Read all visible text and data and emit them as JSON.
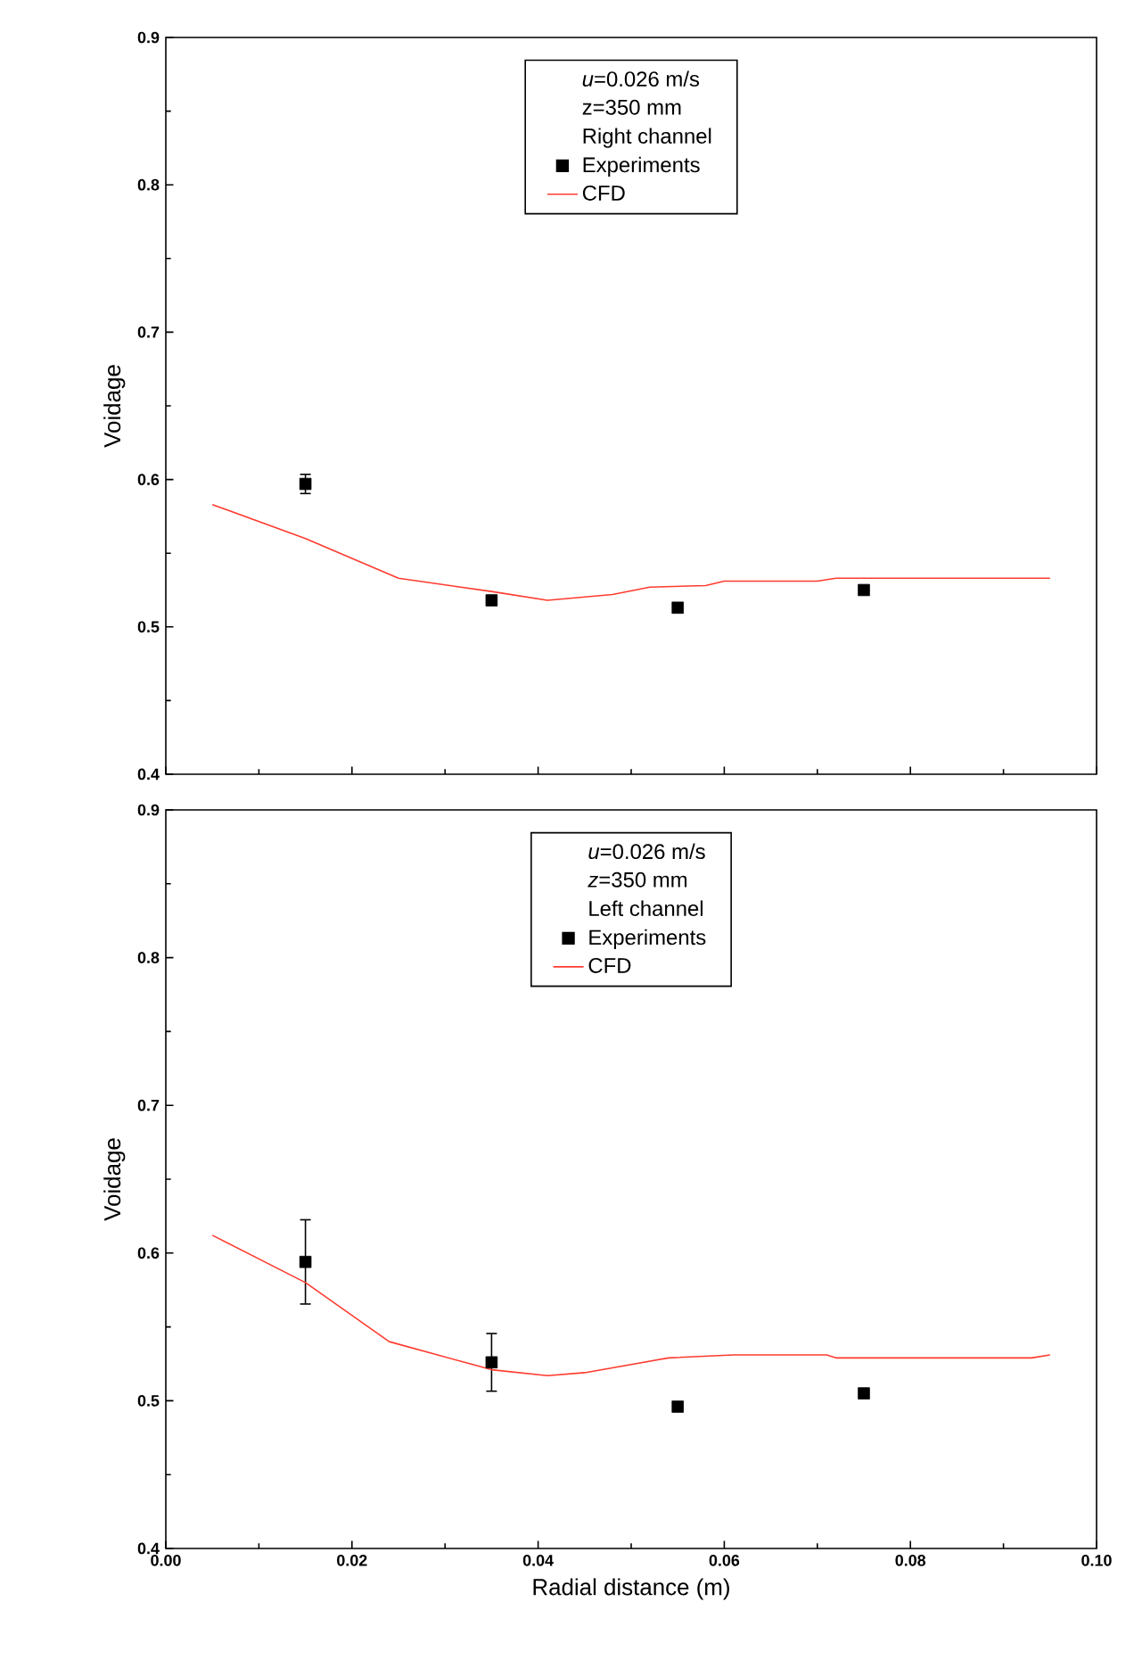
{
  "chart_data": [
    {
      "type": "scatter",
      "ylabel": "Voidage",
      "annotations": [
        "*u*=0.026 m/s",
        "z=350 mm",
        "Right channel"
      ],
      "xlim": [
        0,
        0.1
      ],
      "xticks": [
        0,
        0.02,
        0.04,
        0.06,
        0.08,
        0.1
      ],
      "ylim": [
        0.4,
        0.9
      ],
      "yticks": [
        0.4,
        0.5,
        0.6,
        0.7,
        0.8,
        0.9
      ],
      "tick_labels": "y",
      "legend": "top",
      "series": [
        {
          "name": "Experiments",
          "marker": "square",
          "color": "#000000",
          "x": [
            0.015,
            0.035,
            0.055,
            0.075
          ],
          "values": [
            0.597,
            0.518,
            0.513,
            0.525
          ],
          "errors": [
            0.007,
            null,
            null,
            null
          ]
        },
        {
          "name": "CFD",
          "type": "line",
          "color": "#ff3b2f",
          "x": [
            0.005,
            0.015,
            0.025,
            0.035,
            0.041,
            0.048,
            0.052,
            0.058,
            0.06,
            0.07,
            0.072,
            0.095
          ],
          "values": [
            0.583,
            0.56,
            0.533,
            0.524,
            0.518,
            0.522,
            0.527,
            0.528,
            0.531,
            0.531,
            0.533,
            0.533
          ]
        }
      ]
    },
    {
      "type": "scatter",
      "xlabel": "Radial distance (m)",
      "ylabel": "Voidage",
      "annotations": [
        "*u*=0.026 m/s",
        "*z*=350 mm",
        "Left channel"
      ],
      "xlim": [
        0,
        0.1
      ],
      "xticks": [
        {
          "value": 0,
          "label": "0.00"
        },
        {
          "value": 0.02,
          "label": "0.02"
        },
        {
          "value": 0.04,
          "label": "0.04"
        },
        {
          "value": 0.06,
          "label": "0.06"
        },
        {
          "value": 0.08,
          "label": "0.08"
        },
        {
          "value": 0.1,
          "label": "0.10"
        }
      ],
      "ylim": [
        0.4,
        0.9
      ],
      "yticks": [
        0.4,
        0.5,
        0.6,
        0.7,
        0.8,
        0.9
      ],
      "legend": "top",
      "series": [
        {
          "name": "Experiments",
          "marker": "square",
          "color": "#000000",
          "x": [
            0.015,
            0.035,
            0.055,
            0.075
          ],
          "values": [
            0.594,
            0.526,
            0.496,
            0.505
          ],
          "errors": [
            0.029,
            0.02,
            null,
            null
          ]
        },
        {
          "name": "CFD",
          "type": "line",
          "color": "#ff3b2f",
          "x": [
            0.005,
            0.015,
            0.024,
            0.035,
            0.041,
            0.045,
            0.054,
            0.061,
            0.071,
            0.072,
            0.093,
            0.095
          ],
          "values": [
            0.612,
            0.58,
            0.54,
            0.521,
            0.517,
            0.519,
            0.529,
            0.531,
            0.531,
            0.529,
            0.529,
            0.531
          ]
        }
      ]
    }
  ]
}
